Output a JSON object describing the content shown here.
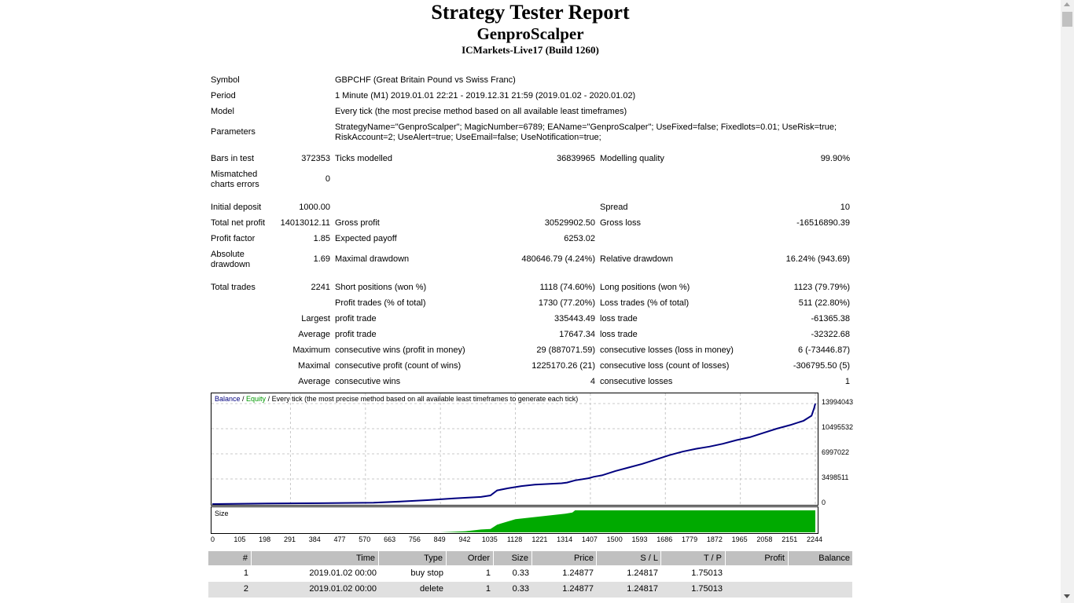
{
  "title": "Strategy Tester Report",
  "ea_name": "GenproScalper",
  "server": "ICMarkets-Live17 (Build 1260)",
  "info": {
    "symbol_label": "Symbol",
    "symbol_value": "GBPCHF (Great Britain Pound vs Swiss Franc)",
    "period_label": "Period",
    "period_value": "1 Minute (M1) 2019.01.01 22:21 - 2019.12.31 21:59 (2019.01.02 - 2020.01.02)",
    "model_label": "Model",
    "model_value": "Every tick (the most precise method based on all available least timeframes)",
    "parameters_label": "Parameters",
    "parameters_line1": "StrategyName=\"GenproScalper\"; MagicNumber=6789; EAName=\"GenproScalper\"; UseFixed=false; Fixedlots=0.01; UseRisk=true;",
    "parameters_line2": "RiskAccount=2; UseAlert=true; UseEmail=false; UseNotification=true;"
  },
  "stats": {
    "bars_label": "Bars in test",
    "bars_value": "372353",
    "ticks_label": "Ticks modelled",
    "ticks_value": "36839965",
    "quality_label": "Modelling quality",
    "quality_value": "99.90%",
    "mismatched_label1": "Mismatched",
    "mismatched_label2": "charts errors",
    "mismatched_value": "0",
    "deposit_label": "Initial deposit",
    "deposit_value": "1000.00",
    "spread_label": "Spread",
    "spread_value": "10",
    "netprofit_label": "Total net profit",
    "netprofit_value": "14013012.11",
    "grossprofit_label": "Gross profit",
    "grossprofit_value": "30529902.50",
    "grossloss_label": "Gross loss",
    "grossloss_value": "-16516890.39",
    "pf_label": "Profit factor",
    "pf_value": "1.85",
    "payoff_label": "Expected payoff",
    "payoff_value": "6253.02",
    "absdd_label1": "Absolute",
    "absdd_label2": "drawdown",
    "absdd_value": "1.69",
    "maxdd_label": "Maximal drawdown",
    "maxdd_value": "480646.79 (4.24%)",
    "reldd_label": "Relative drawdown",
    "reldd_value": "16.24% (943.69)",
    "trades_label": "Total trades",
    "trades_value": "2241",
    "short_label": "Short positions (won %)",
    "short_value": "1118 (74.60%)",
    "long_label": "Long positions (won %)",
    "long_value": "1123 (79.79%)",
    "ptrades_label": "Profit trades (% of total)",
    "ptrades_value": "1730 (77.20%)",
    "ltrades_label": "Loss trades (% of total)",
    "ltrades_value": "511 (22.80%)",
    "largest_label": "Largest",
    "largest_p_label": "profit trade",
    "largest_p_value": "335443.49",
    "largest_l_label": "loss trade",
    "largest_l_value": "-61365.38",
    "average_label": "Average",
    "average_p_label": "profit trade",
    "average_p_value": "17647.34",
    "average_l_label": "loss trade",
    "average_l_value": "-32322.68",
    "maximum_label": "Maximum",
    "max_w_label": "consecutive wins (profit in money)",
    "max_w_value": "29 (887071.59)",
    "max_l_label": "consecutive losses (loss in money)",
    "max_l_value": "6 (-73446.87)",
    "maximal_label": "Maximal",
    "mxl_p_label": "consecutive profit (count of wins)",
    "mxl_p_value": "1225170.26 (21)",
    "mxl_l_label": "consecutive loss (count of losses)",
    "mxl_l_value": "-306795.50 (5)",
    "avgcons_label": "Average",
    "avgcons_w_label": "consecutive wins",
    "avgcons_w_value": "4",
    "avgcons_l_label": "consecutive losses",
    "avgcons_l_value": "1"
  },
  "chart_data": {
    "type": "line",
    "legend_balance": "Balance",
    "legend_sep1": " / ",
    "legend_equity": "Equity",
    "legend_rest": " / Every tick (the most precise method based on all available least timeframes to generate each tick)",
    "y_ticks": [
      "13994043",
      "10495532",
      "6997022",
      "3498511",
      "0"
    ],
    "ylim": [
      0,
      13994043
    ],
    "xlim": [
      0,
      2244
    ],
    "x_ticks": [
      "0",
      "105",
      "198",
      "291",
      "384",
      "477",
      "570",
      "663",
      "756",
      "849",
      "942",
      "1035",
      "1128",
      "1221",
      "1314",
      "1407",
      "1500",
      "1593",
      "1686",
      "1779",
      "1872",
      "1965",
      "2058",
      "2151",
      "2244"
    ],
    "series": [
      {
        "name": "Balance",
        "color": "#00007f",
        "x": [
          0,
          200,
          400,
          600,
          700,
          800,
          900,
          1000,
          1035,
          1060,
          1100,
          1150,
          1200,
          1250,
          1300,
          1320,
          1350,
          1400,
          1420,
          1450,
          1500,
          1550,
          1600,
          1650,
          1700,
          1750,
          1800,
          1850,
          1900,
          1950,
          2000,
          2050,
          2100,
          2150,
          2200,
          2230,
          2240,
          2244
        ],
        "y": [
          1000,
          80000,
          120000,
          200000,
          350000,
          550000,
          800000,
          1000000,
          1200000,
          1900000,
          2200000,
          2500000,
          2700000,
          2800000,
          2900000,
          3000000,
          3300000,
          3600000,
          3800000,
          4000000,
          4600000,
          5100000,
          5600000,
          6200000,
          6800000,
          7300000,
          7700000,
          8000000,
          8400000,
          8900000,
          9300000,
          9900000,
          10500000,
          11000000,
          11600000,
          12300000,
          13400000,
          13994043
        ]
      }
    ],
    "size_chart": {
      "label": "Size",
      "color": "#00aa00",
      "x": [
        0,
        849,
        900,
        942,
        1000,
        1035,
        1060,
        1128,
        1221,
        1314,
        1340,
        1350,
        1407,
        2244
      ],
      "y": [
        0,
        0,
        0.03,
        0.05,
        0.13,
        0.15,
        0.35,
        0.6,
        0.72,
        0.85,
        0.9,
        1,
        1,
        1
      ]
    }
  },
  "table": {
    "headers": [
      "#",
      "Time",
      "Type",
      "Order",
      "Size",
      "Price",
      "S / L",
      "T / P",
      "Profit",
      "Balance"
    ],
    "rows": [
      {
        "n": "1",
        "time": "2019.01.02 00:00",
        "type": "buy stop",
        "order": "1",
        "size": "0.33",
        "price": "1.24877",
        "sl": "1.24817",
        "tp": "1.75013",
        "profit": "",
        "balance": ""
      },
      {
        "n": "2",
        "time": "2019.01.02 00:00",
        "type": "delete",
        "order": "1",
        "size": "0.33",
        "price": "1.24877",
        "sl": "1.24817",
        "tp": "1.75013",
        "profit": "",
        "balance": ""
      }
    ]
  }
}
